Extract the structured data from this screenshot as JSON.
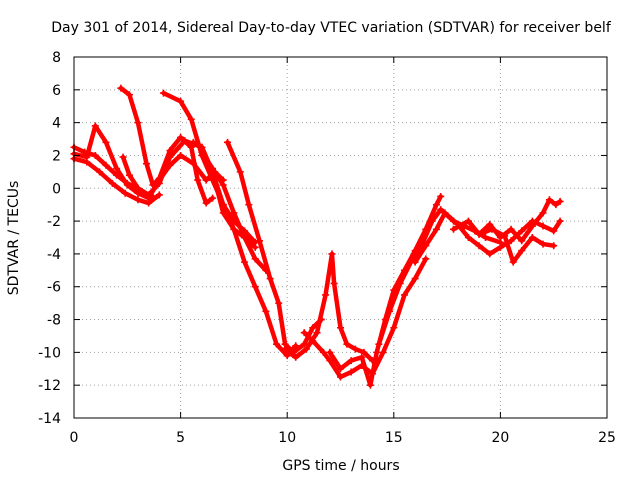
{
  "chart_data": {
    "type": "scatter",
    "title": "Day 301 of 2014, Sidereal Day-to-day VTEC variation (SDTVAR) for receiver belf",
    "xlabel": "GPS time / hours",
    "ylabel": "SDTVAR / TECUs",
    "xlim": [
      0,
      25
    ],
    "ylim": [
      -14,
      8
    ],
    "xticks": [
      "0",
      "5",
      "10",
      "15",
      "20",
      "25"
    ],
    "yticks": [
      "8",
      "6",
      "4",
      "2",
      "0",
      "-2",
      "-4",
      "-6",
      "-8",
      "-10",
      "-12",
      "-14"
    ],
    "grid": true,
    "legend": "none",
    "marker": "plus",
    "color": "#ff0000",
    "series": [
      {
        "points": [
          [
            0.0,
            2.5
          ],
          [
            0.5,
            2.2
          ],
          [
            1.0,
            2.0
          ],
          [
            1.5,
            1.4
          ],
          [
            2.0,
            0.8
          ],
          [
            2.5,
            0.3
          ],
          [
            3.0,
            0.0
          ],
          [
            3.3,
            -0.3
          ],
          [
            3.7,
            -0.5
          ]
        ]
      },
      {
        "points": [
          [
            0.0,
            1.8
          ],
          [
            0.6,
            1.6
          ],
          [
            1.2,
            1.0
          ],
          [
            1.8,
            0.3
          ],
          [
            2.4,
            -0.3
          ],
          [
            3.0,
            -0.7
          ],
          [
            3.5,
            -0.9
          ],
          [
            4.0,
            -0.4
          ]
        ]
      },
      {
        "points": [
          [
            0.0,
            2.1
          ],
          [
            0.6,
            1.9
          ],
          [
            1.0,
            3.8
          ],
          [
            1.5,
            2.8
          ],
          [
            2.0,
            1.2
          ],
          [
            2.5,
            0.2
          ],
          [
            3.0,
            -0.3
          ],
          [
            3.5,
            -0.6
          ],
          [
            4.0,
            0.5
          ],
          [
            4.5,
            1.4
          ],
          [
            5.0,
            2.0
          ],
          [
            5.6,
            1.5
          ],
          [
            6.2,
            0.5
          ],
          [
            6.6,
            1.0
          ],
          [
            7.0,
            0.5
          ]
        ]
      },
      {
        "points": [
          [
            2.2,
            6.1
          ],
          [
            2.6,
            5.7
          ],
          [
            3.0,
            4.0
          ],
          [
            3.4,
            1.5
          ],
          [
            3.7,
            0.2
          ],
          [
            4.0,
            0.6
          ],
          [
            4.5,
            2.3
          ],
          [
            5.0,
            3.1
          ],
          [
            5.5,
            2.5
          ],
          [
            5.8,
            0.5
          ],
          [
            6.2,
            -0.9
          ],
          [
            6.5,
            -0.6
          ]
        ]
      },
      {
        "points": [
          [
            2.3,
            1.9
          ],
          [
            2.6,
            0.8
          ],
          [
            3.0,
            0.0
          ],
          [
            3.5,
            -0.4
          ],
          [
            4.0,
            0.3
          ],
          [
            4.5,
            1.9
          ],
          [
            5.2,
            2.9
          ],
          [
            6.0,
            2.5
          ],
          [
            6.5,
            1.0
          ],
          [
            7.0,
            -1.5
          ],
          [
            7.5,
            -2.5
          ],
          [
            8.0,
            -3.0
          ],
          [
            8.5,
            -3.6
          ]
        ]
      },
      {
        "points": [
          [
            4.2,
            5.8
          ],
          [
            5.0,
            5.3
          ],
          [
            5.5,
            4.2
          ],
          [
            6.0,
            2.0
          ],
          [
            6.5,
            0.5
          ],
          [
            7.0,
            -1.0
          ],
          [
            7.5,
            -2.5
          ],
          [
            8.0,
            -4.5
          ],
          [
            8.5,
            -6.0
          ],
          [
            9.0,
            -7.5
          ],
          [
            9.5,
            -9.5
          ],
          [
            10.0,
            -10.2
          ],
          [
            10.4,
            -9.6
          ]
        ]
      },
      {
        "points": [
          [
            5.6,
            2.8
          ],
          [
            6.0,
            2.5
          ],
          [
            6.5,
            1.0
          ],
          [
            7.0,
            -1.0
          ],
          [
            7.5,
            -2.0
          ],
          [
            8.0,
            -2.6
          ],
          [
            8.5,
            -3.3
          ]
        ]
      },
      {
        "points": [
          [
            6.0,
            2.2
          ],
          [
            6.5,
            1.2
          ],
          [
            7.0,
            0.2
          ],
          [
            7.5,
            -1.5
          ],
          [
            8.0,
            -3.0
          ],
          [
            8.5,
            -4.3
          ],
          [
            9.0,
            -5.0
          ]
        ]
      },
      {
        "points": [
          [
            7.2,
            2.8
          ],
          [
            7.8,
            1.0
          ],
          [
            8.2,
            -1.0
          ],
          [
            8.7,
            -3.2
          ],
          [
            9.2,
            -5.5
          ],
          [
            9.6,
            -7.0
          ],
          [
            9.9,
            -9.5
          ],
          [
            10.3,
            -10.0
          ],
          [
            10.8,
            -9.5
          ],
          [
            11.2,
            -8.5
          ],
          [
            11.6,
            -8.0
          ]
        ]
      },
      {
        "points": [
          [
            9.9,
            -9.8
          ],
          [
            10.4,
            -10.3
          ],
          [
            10.9,
            -9.8
          ],
          [
            11.4,
            -8.8
          ],
          [
            11.8,
            -6.5
          ],
          [
            12.1,
            -4.0
          ],
          [
            12.2,
            -5.8
          ],
          [
            12.5,
            -8.5
          ],
          [
            12.8,
            -9.5
          ],
          [
            13.2,
            -9.8
          ],
          [
            13.6,
            -10.0
          ],
          [
            14.0,
            -10.5
          ]
        ]
      },
      {
        "points": [
          [
            10.8,
            -8.8
          ],
          [
            11.2,
            -9.3
          ],
          [
            11.7,
            -10.0
          ],
          [
            12.0,
            -10.5
          ],
          [
            12.5,
            -11.5
          ],
          [
            13.0,
            -11.2
          ],
          [
            13.5,
            -10.8
          ],
          [
            14.0,
            -11.3
          ],
          [
            14.5,
            -10.0
          ],
          [
            15.0,
            -8.5
          ],
          [
            15.5,
            -6.5
          ],
          [
            16.0,
            -5.5
          ],
          [
            16.5,
            -4.3
          ]
        ]
      },
      {
        "points": [
          [
            12.0,
            -10.0
          ],
          [
            12.5,
            -11.0
          ],
          [
            13.0,
            -10.5
          ],
          [
            13.5,
            -10.3
          ],
          [
            13.9,
            -12.0
          ],
          [
            14.2,
            -10.0
          ],
          [
            14.6,
            -8.0
          ],
          [
            15.0,
            -6.2
          ],
          [
            15.5,
            -5.0
          ],
          [
            16.0,
            -3.8
          ],
          [
            16.5,
            -2.5
          ],
          [
            17.0,
            -1.0
          ],
          [
            17.2,
            -0.5
          ]
        ]
      },
      {
        "points": [
          [
            14.3,
            -9.5
          ],
          [
            14.8,
            -7.5
          ],
          [
            15.3,
            -5.8
          ],
          [
            15.8,
            -4.5
          ],
          [
            16.3,
            -3.5
          ],
          [
            16.8,
            -2.0
          ],
          [
            17.2,
            -1.3
          ],
          [
            17.8,
            -2.0
          ],
          [
            18.3,
            -2.3
          ],
          [
            18.8,
            -2.6
          ],
          [
            19.3,
            -3.0
          ],
          [
            20.0,
            -3.3
          ]
        ]
      },
      {
        "points": [
          [
            16.0,
            -4.5
          ],
          [
            16.5,
            -3.5
          ],
          [
            17.0,
            -2.5
          ],
          [
            17.4,
            -1.5
          ],
          [
            18.0,
            -2.2
          ],
          [
            18.5,
            -3.0
          ],
          [
            19.0,
            -3.5
          ],
          [
            19.5,
            -4.0
          ],
          [
            20.0,
            -3.6
          ],
          [
            20.5,
            -3.2
          ],
          [
            21.0,
            -2.6
          ],
          [
            21.5,
            -2.0
          ],
          [
            22.0,
            -2.3
          ],
          [
            22.5,
            -2.6
          ],
          [
            22.8,
            -2.0
          ]
        ]
      },
      {
        "points": [
          [
            17.8,
            -2.5
          ],
          [
            18.5,
            -2.0
          ],
          [
            19.0,
            -2.8
          ],
          [
            19.5,
            -2.2
          ],
          [
            20.0,
            -3.0
          ],
          [
            20.5,
            -2.5
          ],
          [
            21.0,
            -3.2
          ],
          [
            21.5,
            -2.3
          ],
          [
            22.0,
            -1.5
          ],
          [
            22.3,
            -0.7
          ],
          [
            22.6,
            -1.0
          ],
          [
            22.8,
            -0.8
          ]
        ]
      },
      {
        "points": [
          [
            19.0,
            -2.8
          ],
          [
            19.6,
            -2.5
          ],
          [
            20.2,
            -2.9
          ],
          [
            20.6,
            -4.5
          ],
          [
            21.0,
            -3.8
          ],
          [
            21.5,
            -3.0
          ],
          [
            22.0,
            -3.4
          ],
          [
            22.5,
            -3.5
          ]
        ]
      }
    ]
  }
}
